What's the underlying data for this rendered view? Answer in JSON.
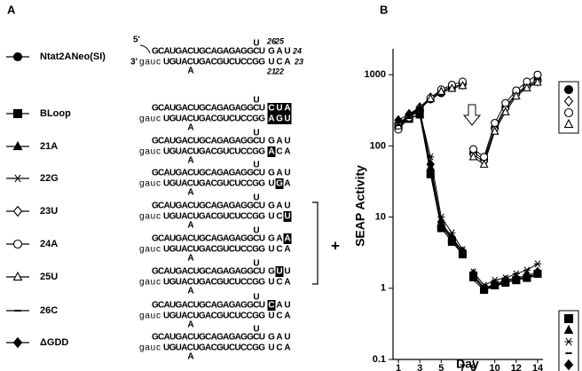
{
  "panel_a": {
    "label": "A",
    "five_prime": "5'",
    "three_prime": "3'",
    "stem_top": "GCAUGACUGCAGAGAGGCU",
    "stem_bottom_lower": "gauc",
    "stem_bottom": "UGUACUGACGUCUCCGG",
    "bulge_top": "U",
    "bulge_bottom": "A",
    "positions_top": [
      "26",
      "25",
      "24"
    ],
    "positions_bottom": [
      "21",
      "22",
      "23"
    ],
    "plus": "+",
    "constructs": [
      {
        "loop_top": [
          "G",
          "A",
          "U"
        ],
        "loop_bottom": [
          "U",
          "C",
          "A"
        ]
      },
      {
        "loop_top": [
          "C",
          "U",
          "A"
        ],
        "loop_bottom": [
          "A",
          "G",
          "U"
        ]
      },
      {
        "loop_top": [
          "G",
          "A",
          "U"
        ],
        "loop_bottom": [
          "A",
          "C",
          "A"
        ]
      },
      {
        "loop_top": [
          "G",
          "A",
          "U"
        ],
        "loop_bottom": [
          "U",
          "G",
          "A"
        ]
      },
      {
        "loop_top": [
          "G",
          "A",
          "U"
        ],
        "loop_bottom": [
          "U",
          "C",
          "U"
        ]
      },
      {
        "loop_top": [
          "G",
          "A",
          "A"
        ],
        "loop_bottom": [
          "U",
          "C",
          "A"
        ]
      },
      {
        "loop_top": [
          "G",
          "U",
          "U"
        ],
        "loop_bottom": [
          "U",
          "C",
          "A"
        ]
      },
      {
        "loop_top": [
          "C",
          "A",
          "U"
        ],
        "loop_bottom": [
          "U",
          "C",
          "A"
        ]
      },
      {
        "loop_top": [
          "G",
          "A",
          "U"
        ],
        "loop_bottom": [
          "U",
          "C",
          "A"
        ]
      }
    ]
  },
  "chart_data": {
    "type": "line",
    "panel_label": "B",
    "x_label": "Day",
    "y_label": "SEAP Activity",
    "log_y": true,
    "xlim": [
      0.5,
      14.5
    ],
    "xticks": [
      1,
      3,
      5,
      7,
      8,
      10,
      12,
      14
    ],
    "ylim": [
      0.1,
      2000
    ],
    "yticks": [
      0.1,
      1,
      10,
      100,
      1000
    ],
    "x": [
      1,
      2,
      3,
      4,
      5,
      6,
      7,
      null,
      8,
      9,
      10,
      11,
      12,
      13,
      14
    ],
    "series": [
      {
        "name": "Ntat2ANeo(SI)",
        "marker": "circle-filled",
        "color": "#000000",
        "values": [
          180,
          260,
          330,
          450,
          550,
          650,
          750,
          null,
          80,
          65,
          180,
          350,
          550,
          700,
          850
        ]
      },
      {
        "name": "BLoop",
        "marker": "square-filled",
        "color": "#000000",
        "values": [
          190,
          240,
          280,
          40,
          7,
          4.5,
          3.0,
          null,
          1.5,
          0.95,
          1.1,
          1.2,
          1.3,
          1.4,
          1.6
        ]
      },
      {
        "name": "21A",
        "marker": "triangle-filled",
        "color": "#000000",
        "values": [
          200,
          250,
          270,
          50,
          8,
          5,
          3.2,
          null,
          1.4,
          1.0,
          1.1,
          1.25,
          1.35,
          1.45,
          1.6
        ]
      },
      {
        "name": "22G",
        "marker": "asterisk",
        "color": "#000000",
        "values": [
          210,
          260,
          300,
          70,
          10,
          6,
          3.5,
          null,
          1.7,
          1.1,
          1.3,
          1.4,
          1.6,
          1.8,
          2.2
        ]
      },
      {
        "name": "23U",
        "marker": "diamond-open",
        "color": "#000000",
        "values": [
          200,
          280,
          350,
          480,
          600,
          680,
          720,
          null,
          75,
          60,
          170,
          330,
          520,
          680,
          800
        ]
      },
      {
        "name": "24A",
        "marker": "circle-open",
        "color": "#000000",
        "values": [
          170,
          250,
          320,
          470,
          620,
          720,
          800,
          null,
          90,
          70,
          210,
          400,
          600,
          800,
          1000
        ]
      },
      {
        "name": "25U",
        "marker": "triangle-open",
        "color": "#000000",
        "values": [
          190,
          270,
          340,
          460,
          580,
          640,
          700,
          null,
          70,
          55,
          160,
          300,
          500,
          650,
          780
        ]
      },
      {
        "name": "26C",
        "marker": "dash",
        "color": "#000000",
        "values": [
          195,
          245,
          270,
          45,
          7.5,
          4.8,
          3.0,
          null,
          1.3,
          0.95,
          1.05,
          1.2,
          1.3,
          1.4,
          1.5
        ]
      },
      {
        "name": "ΔGDD",
        "marker": "diamond-filled",
        "color": "#000000",
        "values": [
          230,
          280,
          320,
          55,
          8.5,
          5.2,
          3.3,
          null,
          1.6,
          1.0,
          1.15,
          1.3,
          1.4,
          1.5,
          1.7
        ]
      }
    ]
  }
}
